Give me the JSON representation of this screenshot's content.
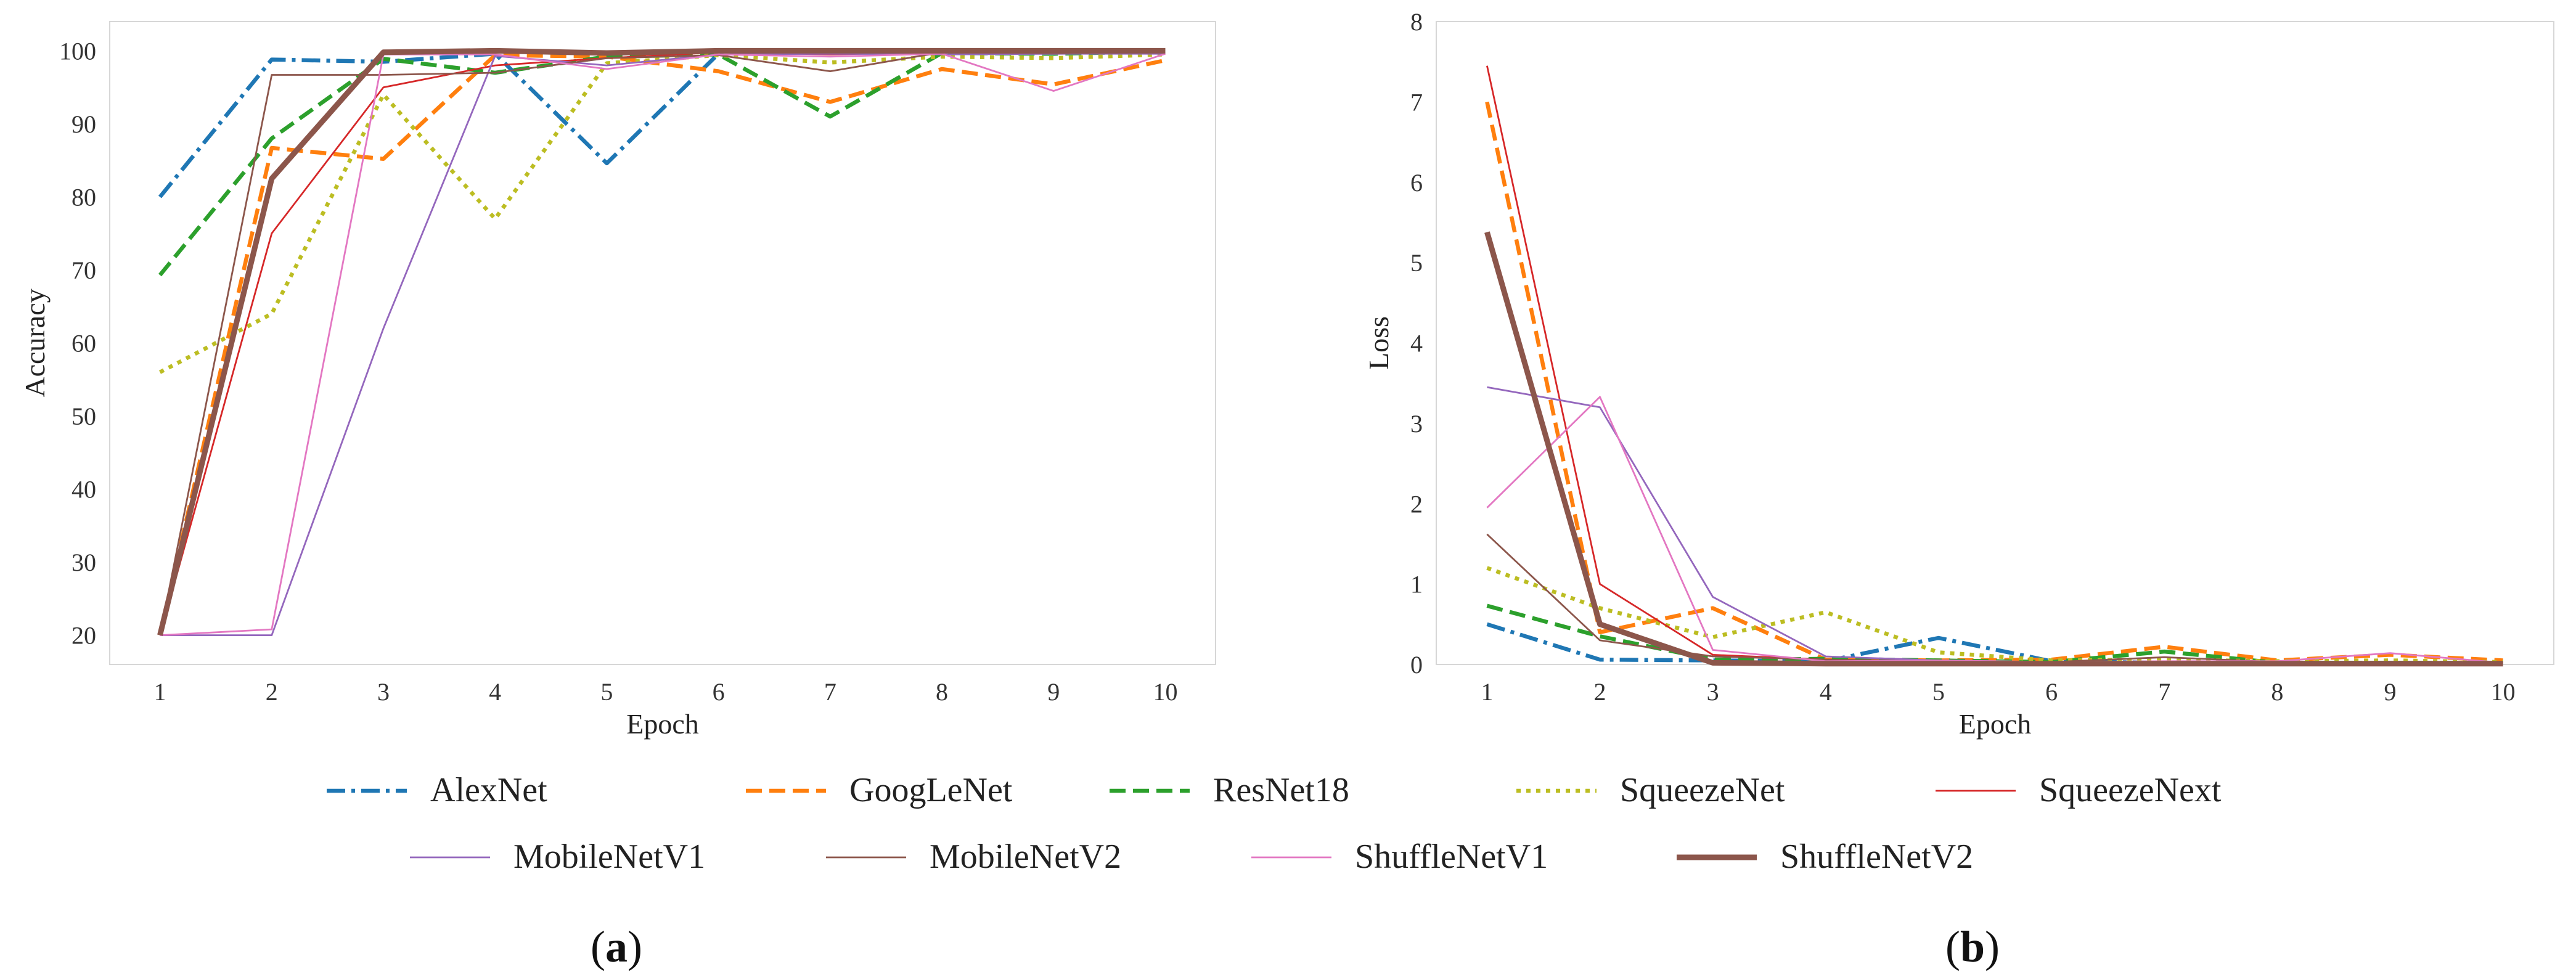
{
  "chart_data": [
    {
      "type": "line",
      "panel_label": "(a)",
      "panel_letter": "a",
      "xlabel": "Epoch",
      "ylabel": "Accuracy",
      "x": [
        1,
        2,
        3,
        4,
        5,
        6,
        7,
        8,
        9,
        10
      ],
      "xlim": [
        0.55,
        10.45
      ],
      "ylim": [
        16,
        104
      ],
      "yticks": [
        20,
        30,
        40,
        50,
        60,
        70,
        80,
        90,
        100
      ],
      "series": [
        {
          "name": "AlexNet",
          "values": [
            80.0,
            98.8,
            98.5,
            99.6,
            84.6,
            99.6,
            100.0,
            100.0,
            100.0,
            100.0
          ]
        },
        {
          "name": "GoogLeNet",
          "values": [
            20.0,
            86.7,
            85.2,
            99.4,
            99.2,
            97.2,
            93.0,
            97.5,
            95.4,
            98.7
          ]
        },
        {
          "name": "ResNet18",
          "values": [
            69.3,
            88.0,
            98.9,
            97.0,
            99.2,
            99.5,
            91.0,
            99.7,
            99.6,
            99.9
          ]
        },
        {
          "name": "SqueezeNet",
          "values": [
            56.0,
            64.0,
            94.0,
            77.0,
            98.3,
            99.4,
            98.4,
            99.2,
            99.0,
            99.5
          ]
        },
        {
          "name": "SqueezeNext",
          "values": [
            20.0,
            75.0,
            95.0,
            98.0,
            99.0,
            99.8,
            99.5,
            99.8,
            99.6,
            99.7
          ]
        },
        {
          "name": "MobileNetV1",
          "values": [
            20.0,
            20.0,
            62.0,
            99.3,
            98.0,
            99.5,
            99.6,
            99.5,
            99.6,
            99.6
          ]
        },
        {
          "name": "MobileNetV2",
          "values": [
            20.0,
            96.7,
            96.7,
            97.0,
            99.0,
            99.4,
            97.2,
            99.8,
            99.7,
            99.8
          ]
        },
        {
          "name": "ShuffleNetV1",
          "values": [
            20.0,
            20.8,
            99.5,
            99.5,
            97.5,
            99.5,
            99.2,
            99.6,
            94.5,
            99.6
          ]
        },
        {
          "name": "ShuffleNetV2",
          "values": [
            20.0,
            82.5,
            99.8,
            100.0,
            99.7,
            100.0,
            100.0,
            100.0,
            100.0,
            100.0
          ]
        }
      ]
    },
    {
      "type": "line",
      "panel_label": "(b)",
      "panel_letter": "b",
      "xlabel": "Epoch",
      "ylabel": "Loss",
      "x": [
        1,
        2,
        3,
        4,
        5,
        6,
        7,
        8,
        9,
        10
      ],
      "xlim": [
        0.55,
        10.45
      ],
      "ylim": [
        0,
        8
      ],
      "yticks": [
        0,
        1,
        2,
        3,
        4,
        5,
        6,
        7,
        8
      ],
      "series": [
        {
          "name": "AlexNet",
          "values": [
            0.5,
            0.06,
            0.05,
            0.04,
            0.33,
            0.04,
            0.02,
            0.02,
            0.02,
            0.02
          ]
        },
        {
          "name": "GoogLeNet",
          "values": [
            7.0,
            0.4,
            0.7,
            0.06,
            0.05,
            0.06,
            0.22,
            0.05,
            0.12,
            0.05
          ]
        },
        {
          "name": "ResNet18",
          "values": [
            0.73,
            0.35,
            0.06,
            0.07,
            0.05,
            0.03,
            0.16,
            0.02,
            0.02,
            0.02
          ]
        },
        {
          "name": "SqueezeNet",
          "values": [
            1.2,
            0.7,
            0.34,
            0.65,
            0.15,
            0.05,
            0.06,
            0.04,
            0.05,
            0.03
          ]
        },
        {
          "name": "SqueezeNext",
          "values": [
            7.45,
            1.0,
            0.12,
            0.06,
            0.04,
            0.03,
            0.03,
            0.02,
            0.02,
            0.02
          ]
        },
        {
          "name": "MobileNetV1",
          "values": [
            3.45,
            3.2,
            0.84,
            0.1,
            0.05,
            0.03,
            0.03,
            0.02,
            0.02,
            0.02
          ]
        },
        {
          "name": "MobileNetV2",
          "values": [
            1.62,
            0.3,
            0.1,
            0.06,
            0.04,
            0.03,
            0.09,
            0.03,
            0.03,
            0.03
          ]
        },
        {
          "name": "ShuffleNetV1",
          "values": [
            1.95,
            3.33,
            0.18,
            0.04,
            0.05,
            0.03,
            0.04,
            0.04,
            0.14,
            0.02
          ]
        },
        {
          "name": "ShuffleNetV2",
          "values": [
            5.38,
            0.5,
            0.02,
            0.01,
            0.01,
            0.01,
            0.01,
            0.01,
            0.01,
            0.01
          ]
        }
      ]
    }
  ],
  "legend": {
    "placement": "bottom-center",
    "entries": [
      {
        "name": "AlexNet",
        "color": "#1f77b4",
        "style": "dashdot",
        "weight": "normal"
      },
      {
        "name": "GoogLeNet",
        "color": "#ff7f0e",
        "style": "dashed",
        "weight": "normal"
      },
      {
        "name": "ResNet18",
        "color": "#2ca02c",
        "style": "dashed",
        "weight": "normal"
      },
      {
        "name": "SqueezeNet",
        "color": "#bcbd22",
        "style": "dotted",
        "weight": "normal"
      },
      {
        "name": "SqueezeNext",
        "color": "#d62728",
        "style": "solid",
        "weight": "thin"
      },
      {
        "name": "MobileNetV1",
        "color": "#9467bd",
        "style": "solid",
        "weight": "thin"
      },
      {
        "name": "MobileNetV2",
        "color": "#8c564b",
        "style": "solid",
        "weight": "thin"
      },
      {
        "name": "ShuffleNetV1",
        "color": "#e377c2",
        "style": "solid",
        "weight": "thin"
      },
      {
        "name": "ShuffleNetV2",
        "color": "#8c564b",
        "style": "solid",
        "weight": "thick"
      }
    ]
  }
}
